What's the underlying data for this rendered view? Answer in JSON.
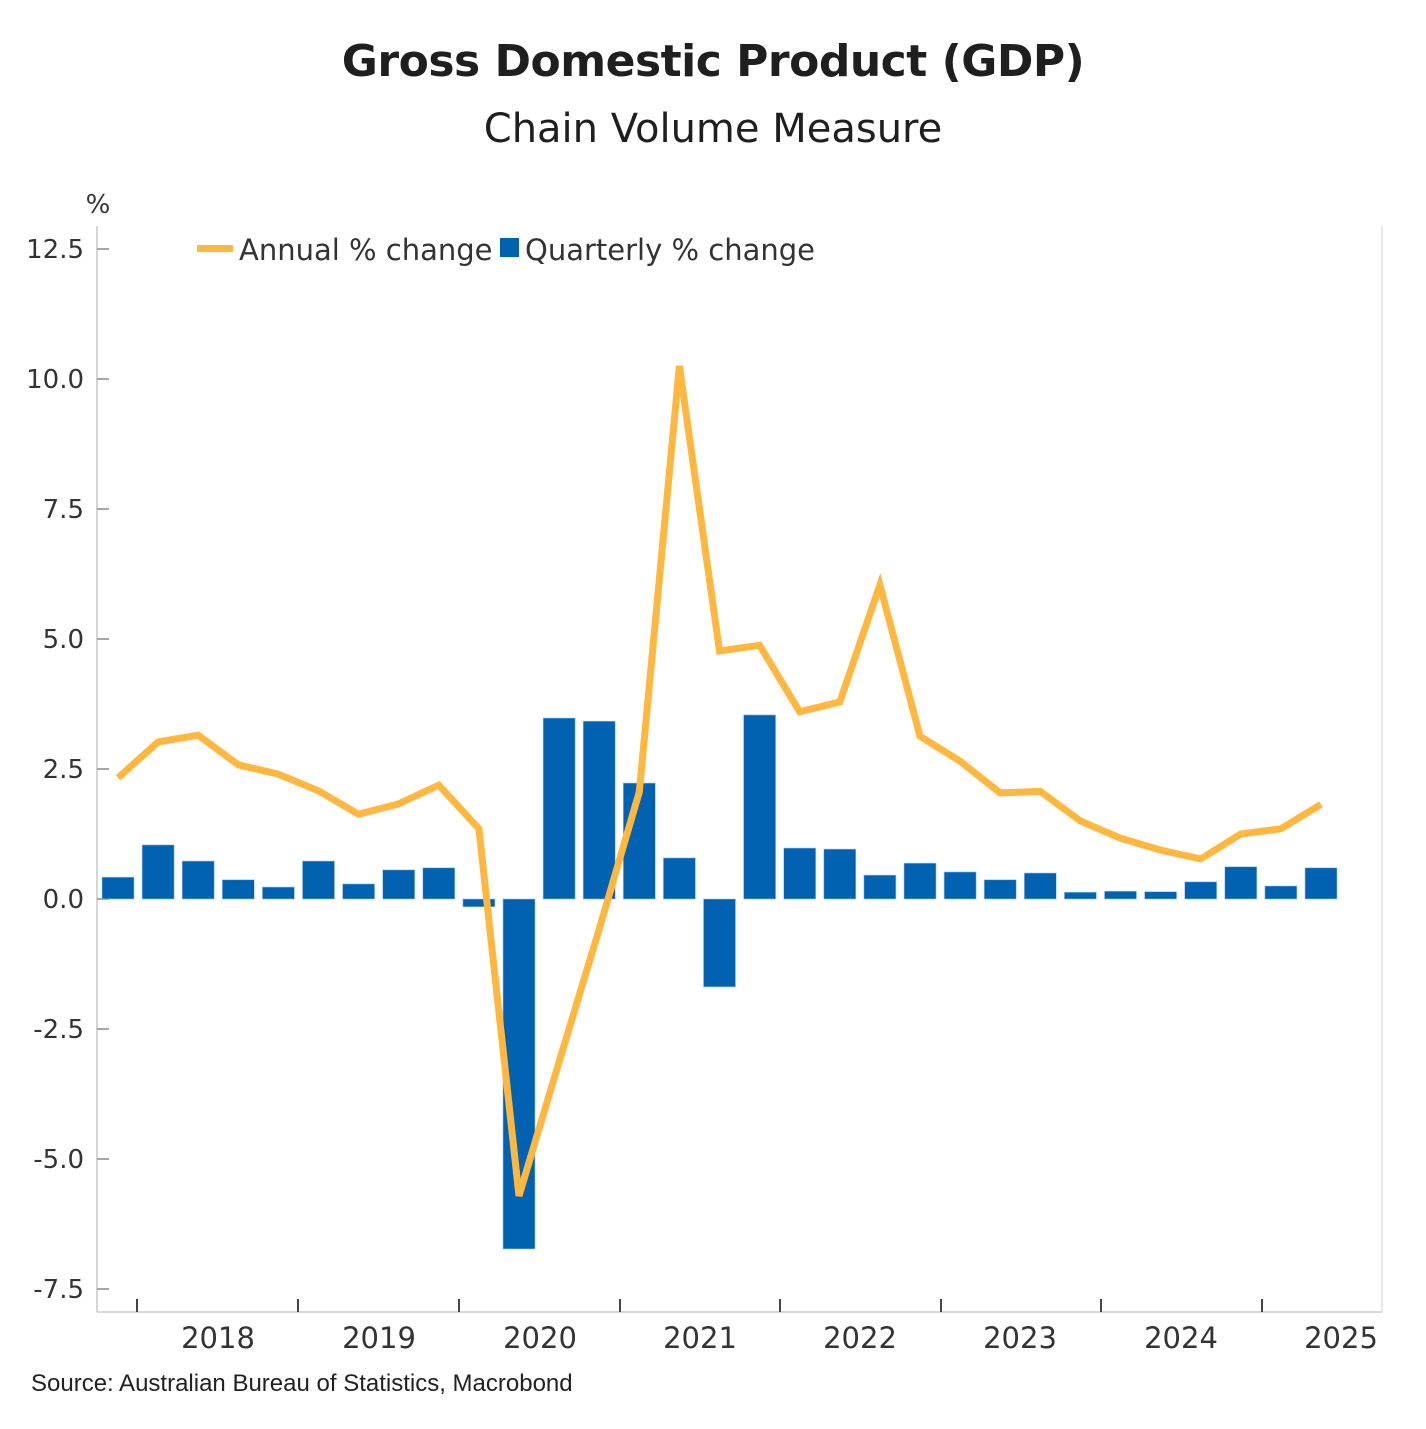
{
  "chart_data": {
    "type": "bar+line",
    "title": "Gross Domestic Product (GDP)",
    "subtitle": "Chain Volume Measure",
    "ylabel": "%",
    "xlabel": "",
    "ylim": [
      -8.0,
      13.0
    ],
    "yticks": [
      -7.5,
      -5.0,
      -2.5,
      0.0,
      2.5,
      5.0,
      7.5,
      10.0,
      12.5
    ],
    "ytick_labels": [
      "-7.5",
      "-5.0",
      "-2.5",
      "0.0",
      "2.5",
      "5.0",
      "7.5",
      "10.0",
      "12.5"
    ],
    "xtick_labels": [
      "2018",
      "2019",
      "2020",
      "2021",
      "2022",
      "2023",
      "2024",
      "2025"
    ],
    "grid": false,
    "legend_position": "top-left",
    "x": [
      "2017Q3",
      "2017Q4",
      "2018Q1",
      "2018Q2",
      "2018Q3",
      "2018Q4",
      "2019Q1",
      "2019Q2",
      "2019Q3",
      "2019Q4",
      "2020Q1",
      "2020Q2",
      "2020Q3",
      "2020Q4",
      "2021Q1",
      "2021Q2",
      "2021Q3",
      "2021Q4",
      "2022Q1",
      "2022Q2",
      "2022Q3",
      "2022Q4",
      "2023Q1",
      "2023Q2",
      "2023Q3",
      "2023Q4",
      "2024Q1",
      "2024Q2",
      "2024Q3",
      "2024Q4",
      "2025Q1"
    ],
    "series": [
      {
        "name": "Annual % change",
        "type": "line",
        "color": "#FFB740",
        "values": [
          2.33,
          3.02,
          3.15,
          2.58,
          2.4,
          2.08,
          1.63,
          1.83,
          2.19,
          1.35,
          -5.71,
          -3.13,
          -0.58,
          2.06,
          10.25,
          4.77,
          4.88,
          3.6,
          3.79,
          6.04,
          3.13,
          2.65,
          2.04,
          2.07,
          1.5,
          1.17,
          0.94,
          0.77,
          1.25,
          1.35,
          1.82
        ]
      },
      {
        "name": "Quarterly % change",
        "type": "bar",
        "color": "#0062B1",
        "values": [
          0.42,
          1.04,
          0.73,
          0.37,
          0.23,
          0.73,
          0.29,
          0.56,
          0.6,
          -0.15,
          -6.73,
          3.48,
          3.42,
          2.23,
          0.79,
          -1.69,
          3.54,
          0.98,
          0.96,
          0.46,
          0.69,
          0.52,
          0.37,
          0.5,
          0.13,
          0.15,
          0.14,
          0.33,
          0.62,
          0.25,
          0.6
        ]
      }
    ],
    "source": "Source: Australian Bureau of Statistics, Macrobond"
  }
}
